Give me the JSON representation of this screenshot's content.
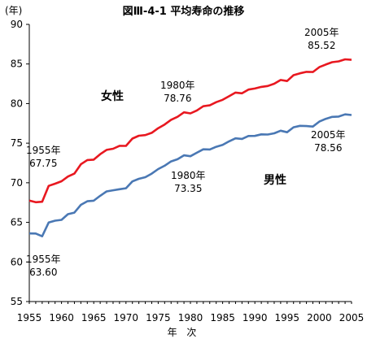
{
  "chart_data": {
    "type": "line",
    "title": "図Ⅲ-4-1 平均寿命の推移",
    "ylabel": "(年)",
    "xlabel": "年 次",
    "x": [
      1955,
      1956,
      1957,
      1958,
      1959,
      1960,
      1961,
      1962,
      1963,
      1964,
      1965,
      1966,
      1967,
      1968,
      1969,
      1970,
      1971,
      1972,
      1973,
      1974,
      1975,
      1976,
      1977,
      1978,
      1979,
      1980,
      1981,
      1982,
      1983,
      1984,
      1985,
      1986,
      1987,
      1988,
      1989,
      1990,
      1991,
      1992,
      1993,
      1994,
      1995,
      1996,
      1997,
      1998,
      1999,
      2000,
      2001,
      2002,
      2003,
      2004,
      2005
    ],
    "xticks": [
      1955,
      1960,
      1965,
      1970,
      1975,
      1980,
      1985,
      1990,
      1995,
      2000,
      2005
    ],
    "yticks": [
      55,
      60,
      65,
      70,
      75,
      80,
      85,
      90
    ],
    "ylim": [
      55,
      90
    ],
    "series": [
      {
        "name": "女性",
        "color": "#e81820",
        "values": [
          67.75,
          67.54,
          67.6,
          69.61,
          69.88,
          70.19,
          70.79,
          71.16,
          72.34,
          72.87,
          72.92,
          73.61,
          74.15,
          74.3,
          74.67,
          74.66,
          75.58,
          75.94,
          76.02,
          76.31,
          76.89,
          77.35,
          77.95,
          78.33,
          78.89,
          78.76,
          79.13,
          79.66,
          79.78,
          80.18,
          80.48,
          80.93,
          81.39,
          81.3,
          81.77,
          81.9,
          82.11,
          82.22,
          82.51,
          82.98,
          82.85,
          83.59,
          83.82,
          84.01,
          83.99,
          84.6,
          84.93,
          85.23,
          85.33,
          85.59,
          85.52
        ]
      },
      {
        "name": "男性",
        "color": "#4a78b4",
        "values": [
          63.6,
          63.59,
          63.24,
          64.98,
          65.21,
          65.32,
          66.03,
          66.23,
          67.21,
          67.67,
          67.74,
          68.35,
          68.91,
          69.05,
          69.18,
          69.31,
          70.17,
          70.5,
          70.7,
          71.16,
          71.73,
          72.15,
          72.69,
          72.97,
          73.46,
          73.35,
          73.79,
          74.22,
          74.2,
          74.54,
          74.78,
          75.23,
          75.61,
          75.54,
          75.91,
          75.92,
          76.11,
          76.09,
          76.25,
          76.57,
          76.38,
          77.01,
          77.19,
          77.16,
          77.1,
          77.72,
          78.07,
          78.32,
          78.36,
          78.64,
          78.56
        ]
      }
    ]
  },
  "labels": {
    "female": "女性",
    "male": "男性",
    "f1955": "1955年\n67.75",
    "f1980": "1980年\n78.76",
    "f2005": "2005年\n85.52",
    "m1955": "1955年\n63.60",
    "m1980": "1980年\n73.35",
    "m2005": "2005年\n78.56"
  }
}
